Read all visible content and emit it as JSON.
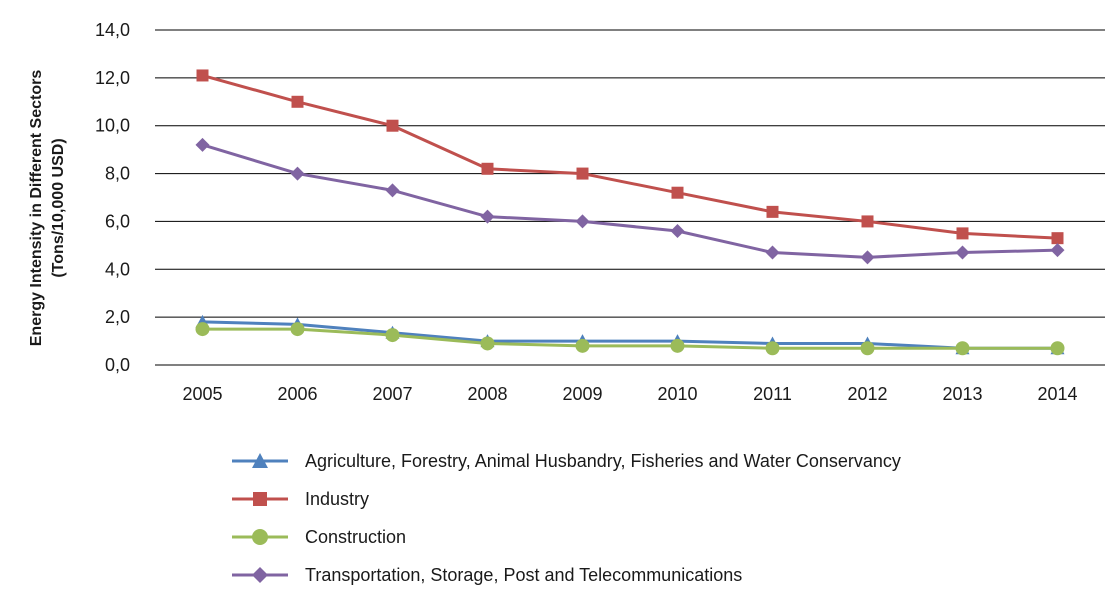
{
  "chart_data": {
    "type": "line",
    "title": "",
    "xlabel": "",
    "ylabel_line1": "Energy Intensity in Different Sectors",
    "ylabel_line2": "(Tons/10,000 USD)",
    "ylim": [
      0,
      14
    ],
    "y_ticks": [
      "0,0",
      "2,0",
      "4,0",
      "6,0",
      "8,0",
      "10,0",
      "12,0",
      "14,0"
    ],
    "grid": true,
    "legend_position": "bottom",
    "categories": [
      "2005",
      "2006",
      "2007",
      "2008",
      "2009",
      "2010",
      "2011",
      "2012",
      "2013",
      "2014"
    ],
    "series": [
      {
        "name": "Agriculture, Forestry, Animal Husbandry, Fisheries and Water Conservancy",
        "color": "#4F81BD",
        "marker": "triangle",
        "values": [
          1.8,
          1.7,
          1.35,
          1.0,
          1.0,
          1.0,
          0.9,
          0.9,
          0.7,
          0.7
        ]
      },
      {
        "name": "Industry",
        "color": "#C0504D",
        "marker": "square",
        "values": [
          12.1,
          11.0,
          10.0,
          8.2,
          8.0,
          7.2,
          6.4,
          6.0,
          5.5,
          5.3
        ]
      },
      {
        "name": "Construction",
        "color": "#9BBB59",
        "marker": "circle",
        "values": [
          1.5,
          1.5,
          1.25,
          0.9,
          0.8,
          0.8,
          0.7,
          0.7,
          0.7,
          0.7
        ]
      },
      {
        "name": "Transportation, Storage, Post and Telecommunications",
        "color": "#8064A2",
        "marker": "diamond",
        "values": [
          9.2,
          8.0,
          7.3,
          6.2,
          6.0,
          5.6,
          4.7,
          4.5,
          4.7,
          4.8
        ]
      }
    ]
  }
}
